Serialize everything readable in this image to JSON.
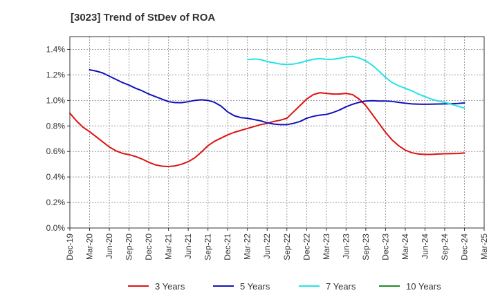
{
  "chart_data": {
    "type": "line",
    "title": "[3023]  Trend of StDev of ROA",
    "xlabel": "",
    "ylabel": "",
    "x_ticks": [
      "Dec-19",
      "Mar-20",
      "Jun-20",
      "Sep-20",
      "Dec-20",
      "Mar-21",
      "Jun-21",
      "Sep-21",
      "Dec-21",
      "Mar-22",
      "Jun-22",
      "Sep-22",
      "Dec-22",
      "Mar-23",
      "Jun-23",
      "Sep-23",
      "Dec-23",
      "Mar-24",
      "Jun-24",
      "Sep-24",
      "Dec-24",
      "Mar-25"
    ],
    "y_ticks": [
      "0.0%",
      "0.2%",
      "0.4%",
      "0.6%",
      "0.8%",
      "1.0%",
      "1.2%",
      "1.4%"
    ],
    "ylim": [
      0,
      1.5
    ],
    "y_unit": "%",
    "grid": true,
    "legend_position": "bottom",
    "series": [
      {
        "name": "3 Years",
        "color": "#dd1111",
        "points": [
          [
            "Dec-19",
            0.9
          ],
          [
            "Jan-20",
            0.84
          ],
          [
            "Feb-20",
            0.79
          ],
          [
            "Mar-20",
            0.755
          ],
          [
            "Apr-20",
            0.715
          ],
          [
            "May-20",
            0.675
          ],
          [
            "Jun-20",
            0.635
          ],
          [
            "Jul-20",
            0.605
          ],
          [
            "Aug-20",
            0.585
          ],
          [
            "Sep-20",
            0.575
          ],
          [
            "Oct-20",
            0.56
          ],
          [
            "Nov-20",
            0.54
          ],
          [
            "Dec-20",
            0.515
          ],
          [
            "Jan-21",
            0.495
          ],
          [
            "Feb-21",
            0.485
          ],
          [
            "Mar-21",
            0.482
          ],
          [
            "Apr-21",
            0.487
          ],
          [
            "May-21",
            0.5
          ],
          [
            "Jun-21",
            0.52
          ],
          [
            "Jul-21",
            0.55
          ],
          [
            "Aug-21",
            0.595
          ],
          [
            "Sep-21",
            0.645
          ],
          [
            "Oct-21",
            0.68
          ],
          [
            "Nov-21",
            0.705
          ],
          [
            "Dec-21",
            0.73
          ],
          [
            "Jan-22",
            0.75
          ],
          [
            "Feb-22",
            0.765
          ],
          [
            "Mar-22",
            0.78
          ],
          [
            "Apr-22",
            0.795
          ],
          [
            "May-22",
            0.81
          ],
          [
            "Jun-22",
            0.82
          ],
          [
            "Jul-22",
            0.835
          ],
          [
            "Aug-22",
            0.845
          ],
          [
            "Sep-22",
            0.86
          ],
          [
            "Oct-22",
            0.91
          ],
          [
            "Nov-22",
            0.96
          ],
          [
            "Dec-22",
            1.01
          ],
          [
            "Jan-23",
            1.045
          ],
          [
            "Feb-23",
            1.06
          ],
          [
            "Mar-23",
            1.055
          ],
          [
            "Apr-23",
            1.05
          ],
          [
            "May-23",
            1.05
          ],
          [
            "Jun-23",
            1.055
          ],
          [
            "Jul-23",
            1.045
          ],
          [
            "Aug-23",
            1.01
          ],
          [
            "Sep-23",
            0.96
          ],
          [
            "Oct-23",
            0.89
          ],
          [
            "Nov-23",
            0.82
          ],
          [
            "Dec-23",
            0.75
          ],
          [
            "Jan-24",
            0.69
          ],
          [
            "Feb-24",
            0.645
          ],
          [
            "Mar-24",
            0.61
          ],
          [
            "Apr-24",
            0.59
          ],
          [
            "May-24",
            0.58
          ],
          [
            "Jun-24",
            0.577
          ],
          [
            "Jul-24",
            0.577
          ],
          [
            "Aug-24",
            0.58
          ],
          [
            "Sep-24",
            0.582
          ],
          [
            "Oct-24",
            0.583
          ],
          [
            "Nov-24",
            0.584
          ],
          [
            "Dec-24",
            0.588
          ]
        ]
      },
      {
        "name": "5 Years",
        "color": "#1111bb",
        "points": [
          [
            "Mar-20",
            1.24
          ],
          [
            "Apr-20",
            1.23
          ],
          [
            "May-20",
            1.215
          ],
          [
            "Jun-20",
            1.19
          ],
          [
            "Jul-20",
            1.165
          ],
          [
            "Aug-20",
            1.14
          ],
          [
            "Sep-20",
            1.12
          ],
          [
            "Oct-20",
            1.095
          ],
          [
            "Nov-20",
            1.075
          ],
          [
            "Dec-20",
            1.05
          ],
          [
            "Jan-21",
            1.03
          ],
          [
            "Feb-21",
            1.01
          ],
          [
            "Mar-21",
            0.99
          ],
          [
            "Apr-21",
            0.983
          ],
          [
            "May-21",
            0.982
          ],
          [
            "Jun-21",
            0.99
          ],
          [
            "Jul-21",
            1.0
          ],
          [
            "Aug-21",
            1.005
          ],
          [
            "Sep-21",
            1.0
          ],
          [
            "Oct-21",
            0.985
          ],
          [
            "Nov-21",
            0.955
          ],
          [
            "Dec-21",
            0.91
          ],
          [
            "Jan-22",
            0.88
          ],
          [
            "Feb-22",
            0.865
          ],
          [
            "Mar-22",
            0.86
          ],
          [
            "Apr-22",
            0.85
          ],
          [
            "May-22",
            0.84
          ],
          [
            "Jun-22",
            0.825
          ],
          [
            "Jul-22",
            0.815
          ],
          [
            "Aug-22",
            0.81
          ],
          [
            "Sep-22",
            0.81
          ],
          [
            "Oct-22",
            0.82
          ],
          [
            "Nov-22",
            0.835
          ],
          [
            "Dec-22",
            0.86
          ],
          [
            "Jan-23",
            0.875
          ],
          [
            "Feb-23",
            0.885
          ],
          [
            "Mar-23",
            0.89
          ],
          [
            "Apr-23",
            0.905
          ],
          [
            "May-23",
            0.925
          ],
          [
            "Jun-23",
            0.95
          ],
          [
            "Jul-23",
            0.97
          ],
          [
            "Aug-23",
            0.985
          ],
          [
            "Sep-23",
            0.995
          ],
          [
            "Oct-23",
            0.998
          ],
          [
            "Nov-23",
            0.995
          ],
          [
            "Dec-23",
            0.995
          ],
          [
            "Jan-24",
            0.992
          ],
          [
            "Feb-24",
            0.985
          ],
          [
            "Mar-24",
            0.978
          ],
          [
            "Apr-24",
            0.973
          ],
          [
            "May-24",
            0.971
          ],
          [
            "Jun-24",
            0.97
          ],
          [
            "Jul-24",
            0.971
          ],
          [
            "Aug-24",
            0.972
          ],
          [
            "Sep-24",
            0.973
          ],
          [
            "Oct-24",
            0.974
          ],
          [
            "Nov-24",
            0.976
          ],
          [
            "Dec-24",
            0.98
          ]
        ]
      },
      {
        "name": "7 Years",
        "color": "#22e5e5",
        "points": [
          [
            "Mar-22",
            1.32
          ],
          [
            "Apr-22",
            1.325
          ],
          [
            "May-22",
            1.32
          ],
          [
            "Jun-22",
            1.305
          ],
          [
            "Jul-22",
            1.295
          ],
          [
            "Aug-22",
            1.285
          ],
          [
            "Sep-22",
            1.282
          ],
          [
            "Oct-22",
            1.285
          ],
          [
            "Nov-22",
            1.295
          ],
          [
            "Dec-22",
            1.31
          ],
          [
            "Jan-23",
            1.322
          ],
          [
            "Feb-23",
            1.328
          ],
          [
            "Mar-23",
            1.322
          ],
          [
            "Apr-23",
            1.322
          ],
          [
            "May-23",
            1.33
          ],
          [
            "Jun-23",
            1.34
          ],
          [
            "Jul-23",
            1.345
          ],
          [
            "Aug-23",
            1.332
          ],
          [
            "Sep-23",
            1.31
          ],
          [
            "Oct-23",
            1.275
          ],
          [
            "Nov-23",
            1.23
          ],
          [
            "Dec-23",
            1.18
          ],
          [
            "Jan-24",
            1.14
          ],
          [
            "Feb-24",
            1.115
          ],
          [
            "Mar-24",
            1.095
          ],
          [
            "Apr-24",
            1.075
          ],
          [
            "May-24",
            1.05
          ],
          [
            "Jun-24",
            1.03
          ],
          [
            "Jul-24",
            1.01
          ],
          [
            "Aug-24",
            0.995
          ],
          [
            "Sep-24",
            0.985
          ],
          [
            "Oct-24",
            0.97
          ],
          [
            "Nov-24",
            0.955
          ],
          [
            "Dec-24",
            0.94
          ]
        ]
      },
      {
        "name": "10 Years",
        "color": "#228b22",
        "points": []
      }
    ]
  }
}
